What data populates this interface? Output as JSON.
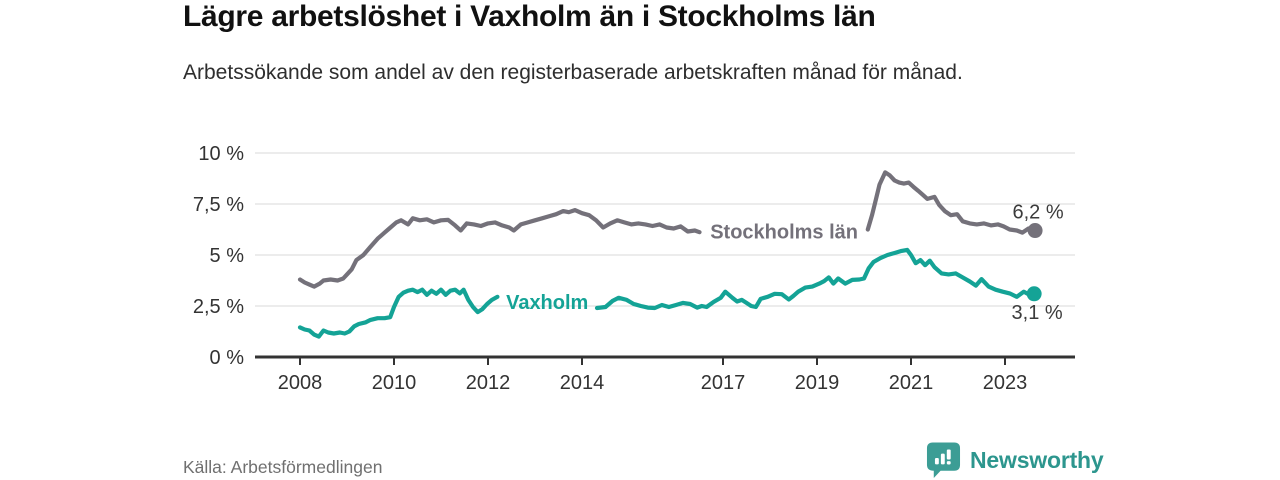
{
  "header": {
    "title": "Lägre arbetslöshet i Vaxholm än i Stockholms län",
    "subtitle": "Arbetssökande som andel av den registerbaserade arbetskraften månad för månad."
  },
  "footer": {
    "source": "Källa: Arbetsförmedlingen",
    "brand": "Newsworthy"
  },
  "colors": {
    "title": "#111111",
    "subtitle": "#2e2e2e",
    "grid": "#d9d9d9",
    "axis": "#333333",
    "tick_text": "#333333",
    "end_label_text": "#3b3b3b",
    "stockholm_gray": "#74717a",
    "vaxholm_teal": "#14a396",
    "brand_teal": "#3c9d95",
    "source_gray": "#707070"
  },
  "chart_data": {
    "type": "line",
    "title": "Lägre arbetslöshet i Vaxholm än i Stockholms län",
    "xlabel": "",
    "ylabel": "",
    "grid": "horizontal",
    "legend_position": "inline-on-line",
    "x_axis": {
      "min": 2007.0,
      "max": 2024.5,
      "ticks": [
        2008,
        2010,
        2012,
        2014,
        2017,
        2019,
        2021,
        2023
      ],
      "tick_labels": [
        "2008",
        "2010",
        "2012",
        "2014",
        "2017",
        "2019",
        "2021",
        "2023"
      ]
    },
    "y_axis": {
      "min": 0,
      "max": 10,
      "unit": "%",
      "ticks": [
        0,
        2.5,
        5,
        7.5,
        10
      ],
      "tick_labels": [
        "0 %",
        "2,5 %",
        "5 %",
        "7,5 %",
        "10 %"
      ]
    },
    "series": [
      {
        "name": "Stockholms län",
        "color": "#74717a",
        "end_label": "6,2 %",
        "end_value": 6.2,
        "end_label_side": "above",
        "label_pos": {
          "x": 2018.3,
          "y": 6.15
        },
        "segments": [
          [
            [
              2008.0,
              3.8
            ],
            [
              2008.1,
              3.65
            ],
            [
              2008.2,
              3.55
            ],
            [
              2008.3,
              3.45
            ],
            [
              2008.42,
              3.6
            ],
            [
              2008.5,
              3.75
            ],
            [
              2008.65,
              3.8
            ],
            [
              2008.8,
              3.75
            ],
            [
              2008.92,
              3.85
            ],
            [
              2009.0,
              4.05
            ],
            [
              2009.1,
              4.3
            ],
            [
              2009.2,
              4.75
            ],
            [
              2009.35,
              5.0
            ],
            [
              2009.5,
              5.4
            ],
            [
              2009.65,
              5.8
            ],
            [
              2009.8,
              6.1
            ],
            [
              2009.9,
              6.3
            ],
            [
              2010.05,
              6.6
            ],
            [
              2010.15,
              6.7
            ],
            [
              2010.3,
              6.5
            ],
            [
              2010.4,
              6.8
            ],
            [
              2010.55,
              6.7
            ],
            [
              2010.7,
              6.75
            ],
            [
              2010.85,
              6.6
            ],
            [
              2011.0,
              6.7
            ],
            [
              2011.15,
              6.72
            ],
            [
              2011.3,
              6.45
            ],
            [
              2011.42,
              6.2
            ],
            [
              2011.55,
              6.55
            ],
            [
              2011.7,
              6.5
            ],
            [
              2011.85,
              6.42
            ],
            [
              2012.0,
              6.55
            ],
            [
              2012.15,
              6.6
            ],
            [
              2012.3,
              6.45
            ],
            [
              2012.45,
              6.35
            ],
            [
              2012.55,
              6.2
            ],
            [
              2012.7,
              6.5
            ],
            [
              2012.85,
              6.6
            ],
            [
              2013.0,
              6.7
            ],
            [
              2013.15,
              6.8
            ],
            [
              2013.3,
              6.9
            ],
            [
              2013.45,
              7.0
            ],
            [
              2013.6,
              7.15
            ],
            [
              2013.72,
              7.1
            ],
            [
              2013.85,
              7.2
            ],
            [
              2014.0,
              7.05
            ],
            [
              2014.15,
              6.95
            ],
            [
              2014.3,
              6.7
            ],
            [
              2014.45,
              6.35
            ],
            [
              2014.6,
              6.55
            ],
            [
              2014.75,
              6.7
            ],
            [
              2014.9,
              6.6
            ],
            [
              2015.05,
              6.5
            ],
            [
              2015.2,
              6.55
            ],
            [
              2015.35,
              6.5
            ],
            [
              2015.5,
              6.42
            ],
            [
              2015.65,
              6.5
            ],
            [
              2015.8,
              6.35
            ],
            [
              2015.95,
              6.3
            ],
            [
              2016.1,
              6.4
            ],
            [
              2016.25,
              6.15
            ],
            [
              2016.4,
              6.2
            ],
            [
              2016.5,
              6.12
            ]
          ],
          [
            [
              2020.08,
              6.25
            ],
            [
              2020.17,
              6.95
            ],
            [
              2020.25,
              7.7
            ],
            [
              2020.33,
              8.45
            ],
            [
              2020.45,
              9.05
            ],
            [
              2020.55,
              8.9
            ],
            [
              2020.65,
              8.65
            ],
            [
              2020.75,
              8.55
            ],
            [
              2020.85,
              8.5
            ],
            [
              2020.95,
              8.55
            ],
            [
              2021.05,
              8.35
            ],
            [
              2021.15,
              8.15
            ],
            [
              2021.25,
              7.95
            ],
            [
              2021.35,
              7.75
            ],
            [
              2021.5,
              7.85
            ],
            [
              2021.6,
              7.45
            ],
            [
              2021.72,
              7.15
            ],
            [
              2021.85,
              6.95
            ],
            [
              2021.98,
              7.0
            ],
            [
              2022.1,
              6.65
            ],
            [
              2022.25,
              6.55
            ],
            [
              2022.4,
              6.5
            ],
            [
              2022.55,
              6.55
            ],
            [
              2022.7,
              6.45
            ],
            [
              2022.85,
              6.5
            ],
            [
              2022.97,
              6.4
            ],
            [
              2023.1,
              6.25
            ],
            [
              2023.25,
              6.2
            ],
            [
              2023.37,
              6.1
            ],
            [
              2023.5,
              6.3
            ],
            [
              2023.64,
              6.2
            ]
          ]
        ]
      },
      {
        "name": "Vaxholm",
        "color": "#14a396",
        "end_label": "3,1 %",
        "end_value": 3.1,
        "end_label_side": "below",
        "label_pos": {
          "x": 2013.26,
          "y": 2.7
        },
        "segments": [
          [
            [
              2008.0,
              1.45
            ],
            [
              2008.1,
              1.35
            ],
            [
              2008.2,
              1.3
            ],
            [
              2008.3,
              1.1
            ],
            [
              2008.4,
              1.0
            ],
            [
              2008.5,
              1.3
            ],
            [
              2008.6,
              1.2
            ],
            [
              2008.72,
              1.15
            ],
            [
              2008.85,
              1.2
            ],
            [
              2008.95,
              1.15
            ],
            [
              2009.05,
              1.25
            ],
            [
              2009.15,
              1.5
            ],
            [
              2009.25,
              1.62
            ],
            [
              2009.4,
              1.7
            ],
            [
              2009.5,
              1.82
            ],
            [
              2009.65,
              1.9
            ],
            [
              2009.8,
              1.9
            ],
            [
              2009.92,
              1.95
            ],
            [
              2010.0,
              2.45
            ],
            [
              2010.1,
              2.95
            ],
            [
              2010.2,
              3.15
            ],
            [
              2010.3,
              3.25
            ],
            [
              2010.4,
              3.3
            ],
            [
              2010.5,
              3.18
            ],
            [
              2010.6,
              3.3
            ],
            [
              2010.7,
              3.05
            ],
            [
              2010.8,
              3.25
            ],
            [
              2010.9,
              3.1
            ],
            [
              2011.0,
              3.3
            ],
            [
              2011.1,
              3.05
            ],
            [
              2011.2,
              3.25
            ],
            [
              2011.3,
              3.3
            ],
            [
              2011.4,
              3.12
            ],
            [
              2011.48,
              3.3
            ],
            [
              2011.58,
              2.8
            ],
            [
              2011.68,
              2.45
            ],
            [
              2011.78,
              2.2
            ],
            [
              2011.88,
              2.35
            ],
            [
              2011.98,
              2.6
            ],
            [
              2012.08,
              2.8
            ],
            [
              2012.2,
              2.95
            ]
          ],
          [
            [
              2014.32,
              2.4
            ],
            [
              2014.5,
              2.45
            ],
            [
              2014.65,
              2.75
            ],
            [
              2014.78,
              2.9
            ],
            [
              2014.95,
              2.8
            ],
            [
              2015.1,
              2.6
            ],
            [
              2015.25,
              2.5
            ],
            [
              2015.4,
              2.42
            ],
            [
              2015.55,
              2.4
            ],
            [
              2015.7,
              2.55
            ],
            [
              2015.85,
              2.45
            ],
            [
              2016.0,
              2.55
            ],
            [
              2016.15,
              2.65
            ],
            [
              2016.3,
              2.6
            ],
            [
              2016.45,
              2.42
            ],
            [
              2016.55,
              2.5
            ],
            [
              2016.65,
              2.45
            ],
            [
              2016.8,
              2.7
            ],
            [
              2016.95,
              2.9
            ],
            [
              2017.05,
              3.2
            ],
            [
              2017.2,
              2.9
            ],
            [
              2017.3,
              2.72
            ],
            [
              2017.4,
              2.8
            ],
            [
              2017.5,
              2.65
            ],
            [
              2017.6,
              2.5
            ],
            [
              2017.7,
              2.45
            ],
            [
              2017.8,
              2.85
            ],
            [
              2017.95,
              2.95
            ],
            [
              2018.1,
              3.1
            ],
            [
              2018.25,
              3.08
            ],
            [
              2018.4,
              2.82
            ],
            [
              2018.5,
              3.0
            ],
            [
              2018.6,
              3.2
            ],
            [
              2018.75,
              3.4
            ],
            [
              2018.9,
              3.45
            ],
            [
              2019.05,
              3.6
            ],
            [
              2019.15,
              3.72
            ],
            [
              2019.25,
              3.9
            ],
            [
              2019.35,
              3.6
            ],
            [
              2019.45,
              3.85
            ],
            [
              2019.6,
              3.6
            ],
            [
              2019.75,
              3.78
            ],
            [
              2019.9,
              3.8
            ],
            [
              2020.0,
              3.85
            ],
            [
              2020.1,
              4.35
            ],
            [
              2020.2,
              4.65
            ],
            [
              2020.35,
              4.85
            ],
            [
              2020.5,
              5.0
            ],
            [
              2020.65,
              5.1
            ],
            [
              2020.8,
              5.2
            ],
            [
              2020.92,
              5.25
            ],
            [
              2021.0,
              5.0
            ],
            [
              2021.1,
              4.6
            ],
            [
              2021.2,
              4.75
            ],
            [
              2021.3,
              4.5
            ],
            [
              2021.4,
              4.72
            ],
            [
              2021.5,
              4.4
            ],
            [
              2021.65,
              4.1
            ],
            [
              2021.8,
              4.05
            ],
            [
              2021.95,
              4.1
            ],
            [
              2022.1,
              3.9
            ],
            [
              2022.25,
              3.7
            ],
            [
              2022.38,
              3.5
            ],
            [
              2022.5,
              3.82
            ],
            [
              2022.65,
              3.45
            ],
            [
              2022.8,
              3.3
            ],
            [
              2022.95,
              3.2
            ],
            [
              2023.1,
              3.12
            ],
            [
              2023.25,
              2.95
            ],
            [
              2023.4,
              3.2
            ],
            [
              2023.52,
              3.05
            ],
            [
              2023.62,
              3.1
            ]
          ]
        ]
      }
    ]
  }
}
